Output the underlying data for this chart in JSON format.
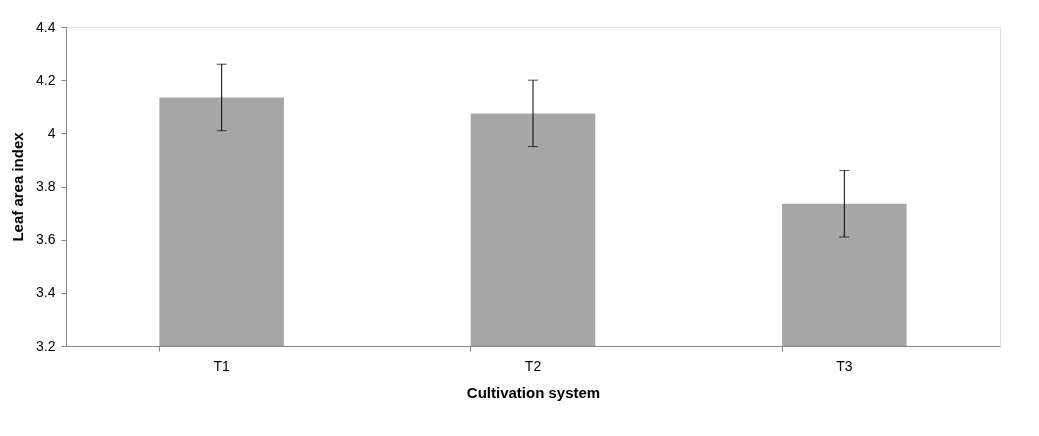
{
  "chart_data": {
    "type": "bar",
    "xlabel": "Cultivation system",
    "ylabel": "Leaf area index",
    "categories": [
      "T1",
      "T2",
      "T3"
    ],
    "values": [
      4.135,
      4.075,
      3.735
    ],
    "errors": [
      0.125,
      0.125,
      0.125
    ],
    "color": "#a6a6a6",
    "ylim": [
      3.2,
      4.4
    ],
    "yticks": [
      3.2,
      3.4,
      3.6,
      3.8,
      4,
      4.2,
      4.4
    ],
    "grid": false
  }
}
